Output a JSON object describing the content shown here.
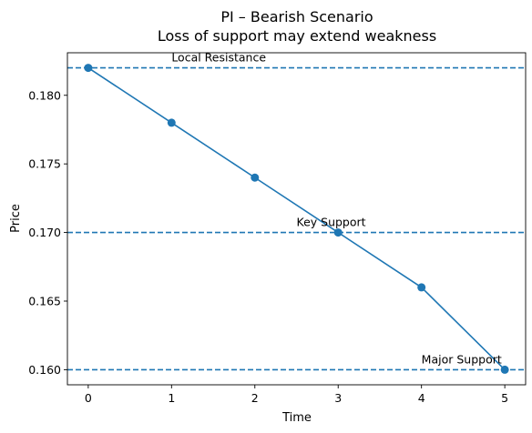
{
  "chart_data": {
    "type": "line",
    "title": "PI – Bearish Scenario",
    "subtitle": "Loss of support may extend weakness",
    "xlabel": "Time",
    "ylabel": "Price",
    "x": [
      0,
      1,
      2,
      3,
      4,
      5
    ],
    "series": [
      {
        "values": [
          0.182,
          0.178,
          0.174,
          0.17,
          0.166,
          0.16
        ],
        "color": "#1f77b4",
        "marker": "circle"
      }
    ],
    "xlim": [
      -0.25,
      5.25
    ],
    "ylim": [
      0.1589,
      0.1831
    ],
    "xticks": [
      0,
      1,
      2,
      3,
      4,
      5
    ],
    "xtick_labels": [
      "0",
      "1",
      "2",
      "3",
      "4",
      "5"
    ],
    "yticks": [
      0.16,
      0.165,
      0.17,
      0.175,
      0.18
    ],
    "ytick_labels": [
      "0.160",
      "0.165",
      "0.170",
      "0.175",
      "0.180"
    ],
    "grid": false,
    "reference_lines": [
      {
        "y": 0.182,
        "label": "Local Resistance",
        "label_x": 1.0,
        "anchor": "start",
        "style": "dashed",
        "color": "#1f77b4"
      },
      {
        "y": 0.17,
        "label": "Key Support",
        "label_x": 2.5,
        "anchor": "start",
        "style": "dashed",
        "color": "#1f77b4"
      },
      {
        "y": 0.16,
        "label": "Major Support",
        "label_x": 4.0,
        "anchor": "start",
        "style": "dashed",
        "color": "#1f77b4"
      }
    ]
  }
}
